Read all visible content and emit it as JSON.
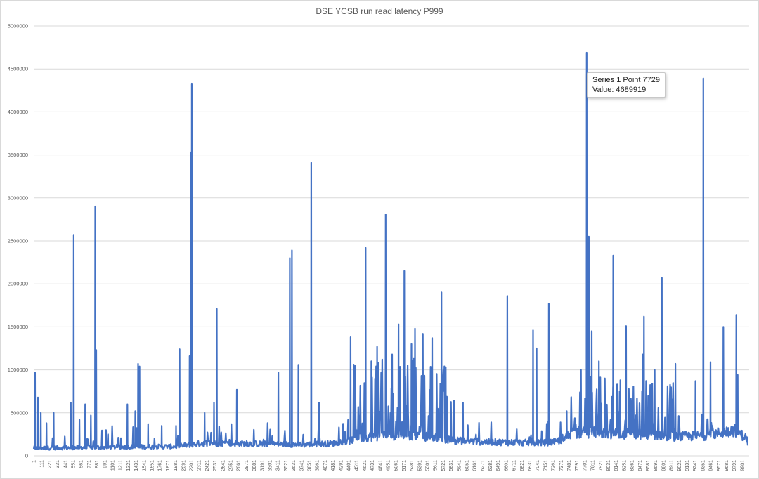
{
  "chart_data": {
    "type": "line",
    "title": "DSE YCSB run read latency P999",
    "xlabel": "",
    "ylabel": "",
    "ylim": [
      0,
      5000000
    ],
    "xlim": [
      1,
      10000
    ],
    "grid": true,
    "legend": "none",
    "y_ticks": [
      "0",
      "500000",
      "1000000",
      "1500000",
      "2000000",
      "2500000",
      "3000000",
      "3500000",
      "4000000",
      "4500000",
      "5000000"
    ],
    "x_ticks": [
      "1",
      "111",
      "221",
      "331",
      "441",
      "551",
      "661",
      "771",
      "881",
      "991",
      "1101",
      "1211",
      "1321",
      "1431",
      "1541",
      "1651",
      "1761",
      "1871",
      "1981",
      "2091",
      "2201",
      "2311",
      "2421",
      "2531",
      "2641",
      "2751",
      "2861",
      "2971",
      "3081",
      "3191",
      "3301",
      "3411",
      "3521",
      "3631",
      "3741",
      "3851",
      "3961",
      "4071",
      "4181",
      "4291",
      "4401",
      "4511",
      "4621",
      "4731",
      "4841",
      "4951",
      "5061",
      "5171",
      "5281",
      "5391",
      "5501",
      "5611",
      "5721",
      "5831",
      "5941",
      "6051",
      "6161",
      "6271",
      "6381",
      "6491",
      "6601",
      "6711",
      "6821",
      "6931",
      "7041",
      "7151",
      "7261",
      "7371",
      "7481",
      "7591",
      "7701",
      "7811",
      "7921",
      "8031",
      "8141",
      "8251",
      "8361",
      "8471",
      "8581",
      "8691",
      "8801",
      "8911",
      "9021",
      "9131",
      "9241",
      "9351",
      "9461",
      "9571",
      "9681",
      "9791",
      "9901"
    ],
    "series": [
      {
        "name": "Series 1",
        "color": "#4472c4",
        "baseline_segments": [
          [
            1,
            90000
          ],
          [
            2000,
            110000
          ],
          [
            2400,
            150000
          ],
          [
            3800,
            130000
          ],
          [
            4300,
            150000
          ],
          [
            4600,
            220000
          ],
          [
            5200,
            250000
          ],
          [
            6000,
            170000
          ],
          [
            7000,
            150000
          ],
          [
            7300,
            160000
          ],
          [
            7500,
            250000
          ],
          [
            7800,
            280000
          ],
          [
            8300,
            250000
          ],
          [
            8700,
            250000
          ],
          [
            9000,
            220000
          ],
          [
            9400,
            240000
          ],
          [
            9800,
            300000
          ],
          [
            9970,
            200000
          ]
        ],
        "peaks": [
          [
            20,
            970000
          ],
          [
            60,
            680000
          ],
          [
            100,
            500000
          ],
          [
            180,
            380000
          ],
          [
            280,
            500000
          ],
          [
            520,
            620000
          ],
          [
            560,
            2570000
          ],
          [
            640,
            420000
          ],
          [
            720,
            600000
          ],
          [
            800,
            470000
          ],
          [
            860,
            2900000
          ],
          [
            875,
            1230000
          ],
          [
            1040,
            250000
          ],
          [
            1310,
            600000
          ],
          [
            1420,
            520000
          ],
          [
            1460,
            1070000
          ],
          [
            1480,
            1040000
          ],
          [
            1600,
            370000
          ],
          [
            1790,
            350000
          ],
          [
            1990,
            350000
          ],
          [
            2040,
            1240000
          ],
          [
            2180,
            1160000
          ],
          [
            2200,
            3530000
          ],
          [
            2210,
            4330000
          ],
          [
            2390,
            500000
          ],
          [
            2520,
            620000
          ],
          [
            2560,
            1710000
          ],
          [
            2840,
            770000
          ],
          [
            3420,
            970000
          ],
          [
            3580,
            2300000
          ],
          [
            3610,
            2390000
          ],
          [
            3700,
            1060000
          ],
          [
            3880,
            3410000
          ],
          [
            3990,
            620000
          ],
          [
            4430,
            1380000
          ],
          [
            4640,
            2420000
          ],
          [
            4720,
            1100000
          ],
          [
            4800,
            1270000
          ],
          [
            4920,
            2810000
          ],
          [
            5010,
            1180000
          ],
          [
            5100,
            1530000
          ],
          [
            5180,
            2150000
          ],
          [
            5280,
            1300000
          ],
          [
            5330,
            1480000
          ],
          [
            5440,
            1420000
          ],
          [
            5570,
            1370000
          ],
          [
            5700,
            1900000
          ],
          [
            5760,
            1030000
          ],
          [
            6000,
            620000
          ],
          [
            6620,
            1860000
          ],
          [
            6980,
            1460000
          ],
          [
            7030,
            1250000
          ],
          [
            7200,
            1770000
          ],
          [
            7450,
            520000
          ],
          [
            7650,
            1000000
          ],
          [
            7729,
            4689919
          ],
          [
            7760,
            2550000
          ],
          [
            7800,
            1450000
          ],
          [
            7900,
            1100000
          ],
          [
            8100,
            2330000
          ],
          [
            8200,
            880000
          ],
          [
            8280,
            1510000
          ],
          [
            8510,
            1180000
          ],
          [
            8530,
            1620000
          ],
          [
            8680,
            1000000
          ],
          [
            8780,
            2070000
          ],
          [
            8970,
            1070000
          ],
          [
            9250,
            870000
          ],
          [
            9360,
            4390000
          ],
          [
            9460,
            1090000
          ],
          [
            9640,
            1500000
          ],
          [
            9820,
            1640000
          ],
          [
            9840,
            940000
          ]
        ]
      }
    ]
  },
  "tooltip": {
    "line1": "Series 1 Point 7729",
    "line2": "Value: 4689919"
  }
}
